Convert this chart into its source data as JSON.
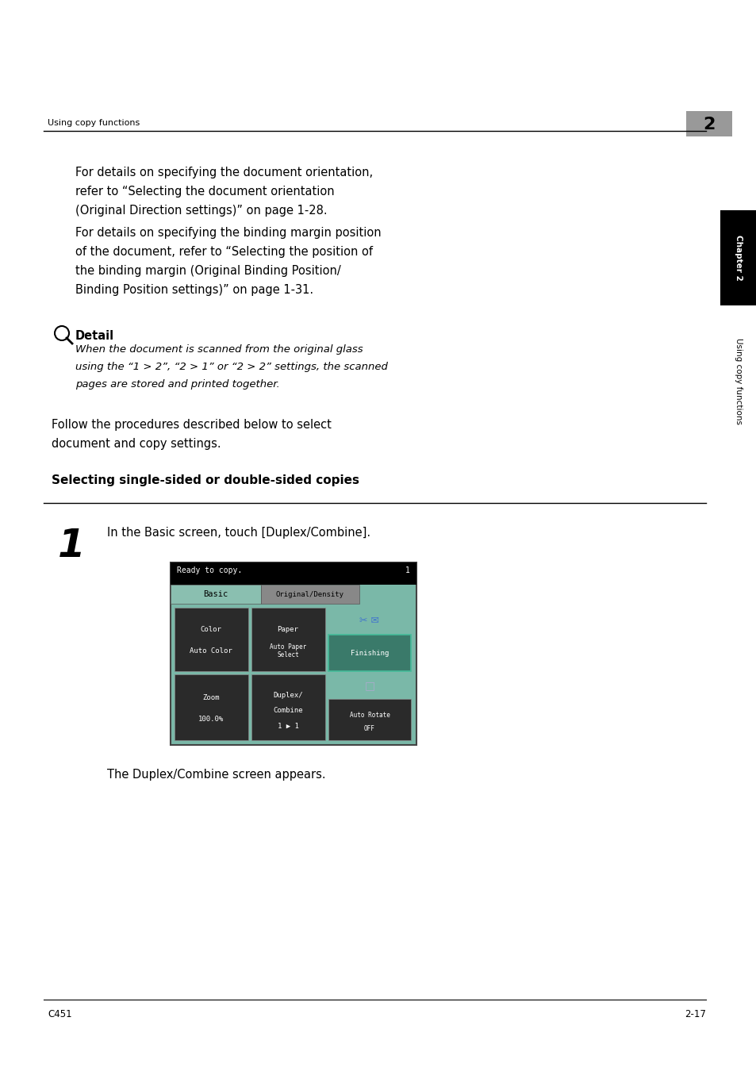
{
  "bg_color": "#ffffff",
  "header_text": "Using copy functions",
  "header_num": "2",
  "chapter_tab_text": "Chapter 2",
  "side_tab_text": "Using copy functions",
  "para1_lines": [
    "For details on specifying the document orientation,",
    "refer to “Selecting the document orientation",
    "(Original Direction settings)” on page 1-28."
  ],
  "para2_lines": [
    "For details on specifying the binding margin position",
    "of the document, refer to “Selecting the position of",
    "the binding margin (Original Binding Position/",
    "Binding Position settings)” on page 1-31."
  ],
  "detail_label": "Detail",
  "detail_italic_lines": [
    "When the document is scanned from the original glass",
    "using the “1 > 2”, “2 > 1” or “2 > 2” settings, the scanned",
    "pages are stored and printed together."
  ],
  "follow_lines": [
    "Follow the procedures described below to select",
    "document and copy settings."
  ],
  "section_heading": "Selecting single-sided or double-sided copies",
  "step1_text": "In the Basic screen, touch [Duplex/Combine].",
  "step1_footer": "The Duplex/Combine screen appears.",
  "footer_left": "C451",
  "footer_right": "2-17",
  "screen_bg": "#7ab8a8",
  "screen_status_bg": "#000000",
  "screen_tab_bg": "#888888",
  "screen_btn_bg": "#3a3a3a",
  "screen_finish_bg": "#1a5a5a"
}
